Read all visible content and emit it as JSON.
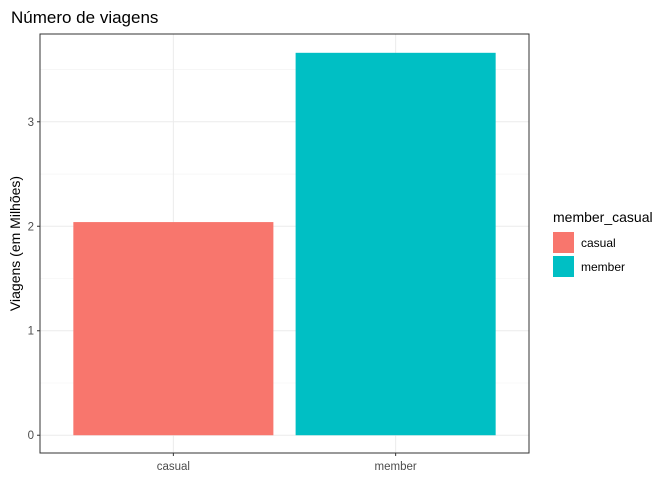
{
  "chart_data": {
    "type": "bar",
    "title": "Número de viagens",
    "xlabel": "",
    "ylabel": "Viagens (em Milhões)",
    "categories": [
      "casual",
      "member"
    ],
    "values": [
      2.04,
      3.66
    ],
    "colors": [
      "#F8766D",
      "#00BFC4"
    ],
    "ylim": [
      -0.17,
      3.84
    ],
    "yticks": [
      0,
      1,
      2,
      3
    ],
    "grid": true,
    "legend": {
      "title": "member_casual",
      "position": "right",
      "entries": [
        {
          "label": "casual",
          "color": "#F8766D"
        },
        {
          "label": "member",
          "color": "#00BFC4"
        }
      ]
    }
  }
}
